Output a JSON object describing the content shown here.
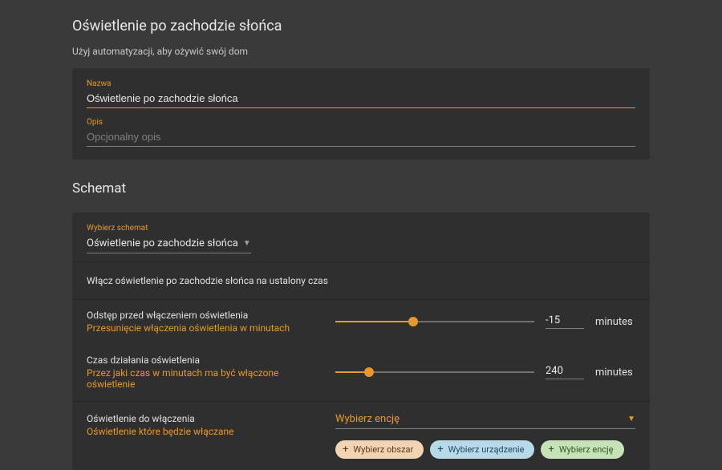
{
  "colors": {
    "page_bg": "#3a3a3a",
    "card_bg": "#2f2f2f",
    "accent": "#e6982e",
    "text": "#e0e0e0",
    "muted": "#808080"
  },
  "header": {
    "title": "Oświetlenie po zachodzie słońca",
    "subtitle": "Użyj automatyzacji, aby ożywić swój dom"
  },
  "name_field": {
    "label": "Nazwa",
    "value": "Oświetlenie po zachodzie słońca"
  },
  "desc_field": {
    "label": "Opis",
    "placeholder": "Opcjonalny opis",
    "value": ""
  },
  "section_schema_title": "Schemat",
  "schema_select": {
    "label": "Wybierz schemat",
    "value": "Oświetlenie po zachodzie słońca"
  },
  "schema_description": "Włącz oświetlenie po zachodzie słońca na ustalony czas",
  "slider1": {
    "title": "Odstęp przed włączeniem oświetlenia",
    "subtitle": "Przesunięcie włączenia oświetlenia w minutach",
    "value": "-15",
    "unit": "minutes",
    "fill_pct": 39
  },
  "slider2": {
    "title": "Czas działania oświetlenia",
    "subtitle": "Przez jaki czas w minutach ma być włączone oświetlenie",
    "value": "240",
    "unit": "minutes",
    "fill_pct": 17
  },
  "entity": {
    "title": "Oświetlenie do włączenia",
    "subtitle": "Oświetlenie które będzie włączane",
    "select_placeholder": "Wybierz encję"
  },
  "chips": {
    "area": "Wybierz obszar",
    "device": "Wybierz urządzenie",
    "entity": "Wybierz encję"
  }
}
